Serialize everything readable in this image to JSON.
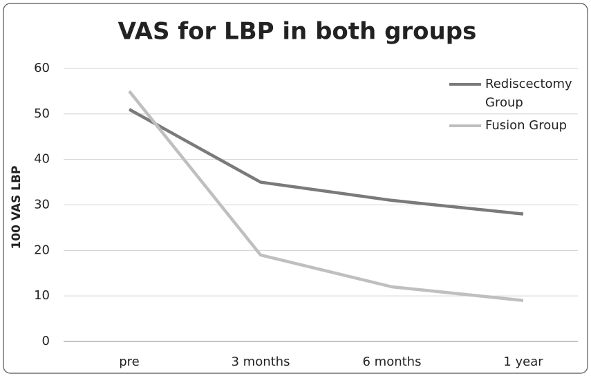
{
  "chart_data": {
    "type": "line",
    "title": "VAS for LBP in both groups",
    "ylabel": "100  VAS LBP",
    "categories": [
      "pre",
      "3 months",
      "6 months",
      "1 year"
    ],
    "series": [
      {
        "name": "Rediscectomy Group",
        "color": "#7a7a7a",
        "values": [
          51,
          35,
          31,
          28
        ]
      },
      {
        "name": "Fusion Group",
        "color": "#bfbfbf",
        "values": [
          55,
          19,
          12,
          9
        ]
      }
    ],
    "ylim": [
      0,
      60
    ],
    "yticks": [
      0,
      10,
      20,
      30,
      40,
      50,
      60
    ],
    "grid": true,
    "legend": "top-right"
  }
}
